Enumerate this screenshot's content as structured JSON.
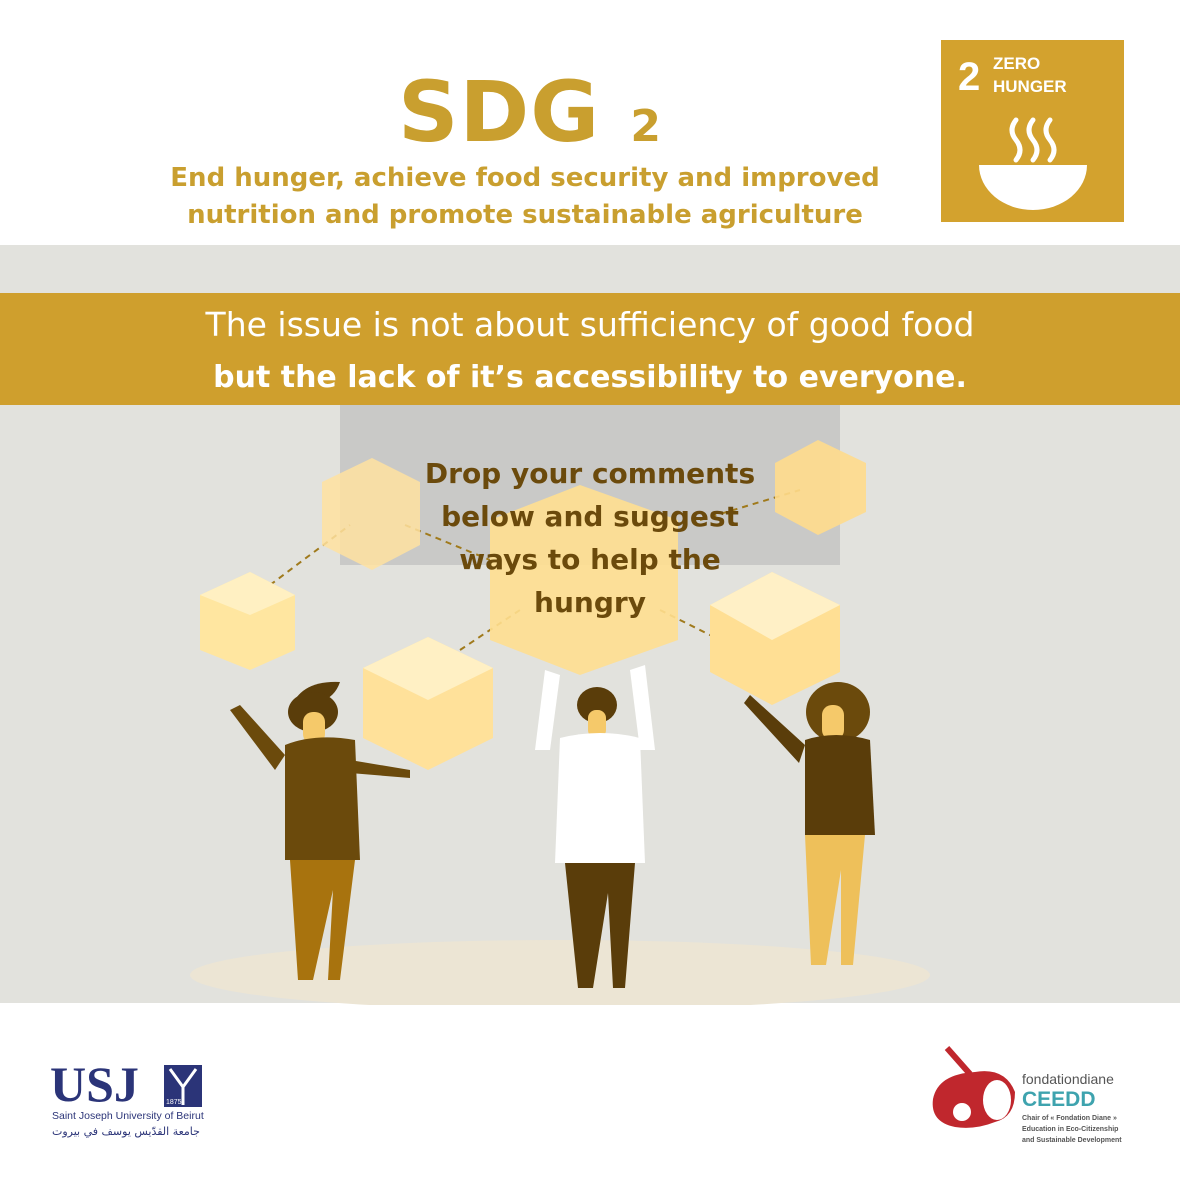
{
  "header": {
    "title": "SDG",
    "title_number": "2",
    "subtitle_line1": "End hunger, achieve food security and improved",
    "subtitle_line2": "nutrition and promote sustainable agriculture"
  },
  "sdg_tile": {
    "number": "2",
    "label_line1": "ZERO",
    "label_line2": "HUNGER",
    "icon": "soup-bowl-icon",
    "color": "#d3a22e"
  },
  "banner": {
    "line1": "The issue is not about sufficiency of good food",
    "line2": "but the lack of it’s accessibility to everyone."
  },
  "call_to_action": {
    "line1": "Drop your comments",
    "line2": "below and suggest",
    "line3": "ways to help the",
    "line4": "hungry"
  },
  "footer": {
    "usj_logo": {
      "mark": "USJ",
      "year": "1875",
      "name": "Saint Joseph University of Beirut",
      "arabic": "جامعة القدّيس يوسف في بيروت"
    },
    "ceedd_logo": {
      "brand": "fondationdiane",
      "name": "CEEDD",
      "line1": "Chair of « Fondation Diane »",
      "line2": "Education in Eco-Citizenship",
      "line3": "and Sustainable Development"
    }
  },
  "colors": {
    "gold": "#cf9f2d",
    "band": "#e2e2dd",
    "dark_brown": "#6b4a0c",
    "usj_blue": "#2b3478",
    "ceedd_red": "#c0272d",
    "ceedd_teal": "#3ea3ae"
  }
}
